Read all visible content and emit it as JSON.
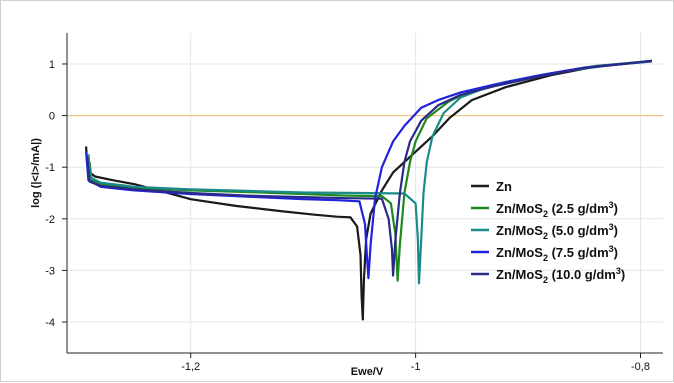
{
  "chart_data": {
    "type": "line",
    "title": "",
    "xlabel": "Ewe/V",
    "ylabel": "log (|<I>/mA|)",
    "xlim": [
      -1.31,
      -0.78
    ],
    "ylim": [
      -4.6,
      1.6
    ],
    "x_ticks": [
      {
        "value": -1.2,
        "label": "-1,2"
      },
      {
        "value": -1.0,
        "label": "-1"
      },
      {
        "value": -0.8,
        "label": "-0,8"
      }
    ],
    "y_ticks": [
      {
        "value": 1,
        "label": "1"
      },
      {
        "value": 0,
        "label": "0"
      },
      {
        "value": -1,
        "label": "-1"
      },
      {
        "value": -2,
        "label": "-2"
      },
      {
        "value": -3,
        "label": "-3"
      },
      {
        "value": -4,
        "label": "-4"
      }
    ],
    "grid": true,
    "reference_line": {
      "y": 0,
      "color": "#f5c27a"
    },
    "legend": {
      "placement": "right",
      "entries": [
        {
          "base": "Zn",
          "sub": "",
          "suffix": "",
          "sup": "",
          "end": "",
          "color": "#1a1a1a"
        },
        {
          "base": "Zn/MoS",
          "sub": "2",
          "suffix": " (2.5 g/dm",
          "sup": "3",
          "end": ")",
          "color": "#1e8a1e"
        },
        {
          "base": "Zn/MoS",
          "sub": "2",
          "suffix": " (5.0 g/dm",
          "sup": "3",
          "end": ")",
          "color": "#1a8a8a"
        },
        {
          "base": "Zn/MoS",
          "sub": "2",
          "suffix": " (7.5 g/dm",
          "sup": "3",
          "end": ")",
          "color": "#2222dd"
        },
        {
          "base": "Zn/MoS",
          "sub": "2",
          "suffix": " (10.0 g/dm",
          "sup": "3",
          "end": ")",
          "color": "#2a2a88"
        }
      ]
    },
    "series": [
      {
        "color": "#1a1a1a",
        "points": [
          [
            -1.293,
            -0.6
          ],
          [
            -1.292,
            -0.95
          ],
          [
            -1.29,
            -1.1
          ],
          [
            -1.285,
            -1.18
          ],
          [
            -1.27,
            -1.25
          ],
          [
            -1.25,
            -1.33
          ],
          [
            -1.22,
            -1.5
          ],
          [
            -1.2,
            -1.62
          ],
          [
            -1.16,
            -1.75
          ],
          [
            -1.12,
            -1.85
          ],
          [
            -1.09,
            -1.92
          ],
          [
            -1.07,
            -1.96
          ],
          [
            -1.058,
            -1.97
          ],
          [
            -1.052,
            -2.15
          ],
          [
            -1.049,
            -2.7
          ],
          [
            -1.048,
            -3.5
          ],
          [
            -1.047,
            -3.95
          ],
          [
            -1.046,
            -3.2
          ],
          [
            -1.044,
            -2.4
          ],
          [
            -1.04,
            -1.9
          ],
          [
            -1.03,
            -1.45
          ],
          [
            -1.02,
            -1.1
          ],
          [
            -1.0,
            -0.7
          ],
          [
            -0.985,
            -0.4
          ],
          [
            -0.97,
            -0.05
          ],
          [
            -0.95,
            0.3
          ],
          [
            -0.92,
            0.55
          ],
          [
            -0.88,
            0.78
          ],
          [
            -0.84,
            0.95
          ],
          [
            -0.79,
            1.05
          ]
        ]
      },
      {
        "color": "#1e8a1e",
        "points": [
          [
            -1.29,
            -0.9
          ],
          [
            -1.288,
            -1.25
          ],
          [
            -1.28,
            -1.32
          ],
          [
            -1.25,
            -1.4
          ],
          [
            -1.2,
            -1.45
          ],
          [
            -1.15,
            -1.48
          ],
          [
            -1.1,
            -1.52
          ],
          [
            -1.06,
            -1.55
          ],
          [
            -1.03,
            -1.56
          ],
          [
            -1.022,
            -1.7
          ],
          [
            -1.018,
            -2.3
          ],
          [
            -1.016,
            -3.2
          ],
          [
            -1.014,
            -2.5
          ],
          [
            -1.01,
            -1.5
          ],
          [
            -1.005,
            -0.9
          ],
          [
            -1.0,
            -0.5
          ],
          [
            -0.99,
            -0.05
          ],
          [
            -0.97,
            0.28
          ],
          [
            -0.95,
            0.48
          ],
          [
            -0.92,
            0.65
          ],
          [
            -0.88,
            0.82
          ],
          [
            -0.84,
            0.96
          ],
          [
            -0.79,
            1.06
          ]
        ]
      },
      {
        "color": "#1a8a8a",
        "points": [
          [
            -1.291,
            -0.75
          ],
          [
            -1.289,
            -1.2
          ],
          [
            -1.28,
            -1.3
          ],
          [
            -1.25,
            -1.38
          ],
          [
            -1.2,
            -1.43
          ],
          [
            -1.15,
            -1.46
          ],
          [
            -1.1,
            -1.49
          ],
          [
            -1.05,
            -1.5
          ],
          [
            -1.01,
            -1.51
          ],
          [
            -1.0,
            -1.7
          ],
          [
            -0.998,
            -2.4
          ],
          [
            -0.997,
            -3.25
          ],
          [
            -0.995,
            -2.4
          ],
          [
            -0.993,
            -1.5
          ],
          [
            -0.99,
            -0.9
          ],
          [
            -0.985,
            -0.4
          ],
          [
            -0.975,
            0.05
          ],
          [
            -0.96,
            0.35
          ],
          [
            -0.94,
            0.52
          ],
          [
            -0.91,
            0.68
          ],
          [
            -0.87,
            0.85
          ],
          [
            -0.83,
            0.97
          ],
          [
            -0.79,
            1.05
          ]
        ]
      },
      {
        "color": "#2222dd",
        "points": [
          [
            -1.293,
            -0.7
          ],
          [
            -1.291,
            -1.25
          ],
          [
            -1.28,
            -1.38
          ],
          [
            -1.25,
            -1.45
          ],
          [
            -1.2,
            -1.52
          ],
          [
            -1.15,
            -1.57
          ],
          [
            -1.1,
            -1.62
          ],
          [
            -1.07,
            -1.64
          ],
          [
            -1.05,
            -1.66
          ],
          [
            -1.045,
            -2.1
          ],
          [
            -1.043,
            -2.8
          ],
          [
            -1.042,
            -3.15
          ],
          [
            -1.04,
            -2.5
          ],
          [
            -1.036,
            -1.6
          ],
          [
            -1.03,
            -1.0
          ],
          [
            -1.02,
            -0.5
          ],
          [
            -1.01,
            -0.2
          ],
          [
            -0.995,
            0.15
          ],
          [
            -0.98,
            0.3
          ],
          [
            -0.96,
            0.45
          ],
          [
            -0.93,
            0.6
          ],
          [
            -0.89,
            0.78
          ],
          [
            -0.85,
            0.93
          ],
          [
            -0.79,
            1.06
          ]
        ]
      },
      {
        "color": "#2a2a88",
        "points": [
          [
            -1.292,
            -0.8
          ],
          [
            -1.29,
            -1.28
          ],
          [
            -1.28,
            -1.36
          ],
          [
            -1.25,
            -1.43
          ],
          [
            -1.2,
            -1.5
          ],
          [
            -1.15,
            -1.55
          ],
          [
            -1.1,
            -1.58
          ],
          [
            -1.06,
            -1.6
          ],
          [
            -1.03,
            -1.61
          ],
          [
            -1.024,
            -2.0
          ],
          [
            -1.021,
            -2.6
          ],
          [
            -1.02,
            -3.1
          ],
          [
            -1.018,
            -2.4
          ],
          [
            -1.014,
            -1.5
          ],
          [
            -1.01,
            -0.9
          ],
          [
            -1.005,
            -0.5
          ],
          [
            -0.995,
            -0.1
          ],
          [
            -0.98,
            0.2
          ],
          [
            -0.96,
            0.4
          ],
          [
            -0.93,
            0.57
          ],
          [
            -0.89,
            0.76
          ],
          [
            -0.85,
            0.92
          ],
          [
            -0.79,
            1.06
          ]
        ]
      }
    ]
  }
}
